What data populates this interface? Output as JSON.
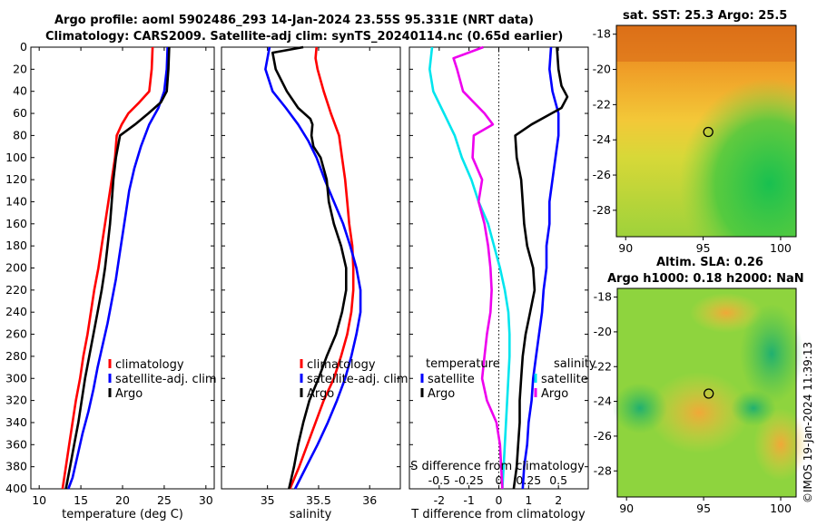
{
  "header": {
    "title_line1": "Argo profile: aoml 5902486_293 14-Jan-2024 23.55S 95.331E (NRT data)",
    "title_line2": "Climatology: CARS2009. Satellite-adj clim: synTS_20240114.nc (0.65d earlier)"
  },
  "colors": {
    "climatology": "#ff0000",
    "satellite": "#0000ff",
    "argo": "#000000",
    "salinity_sat": "#00e5ee",
    "salinity_argo": "#ee00ee"
  },
  "depth_axis": {
    "ylim": [
      0,
      400
    ],
    "ticks": [
      0,
      20,
      40,
      60,
      80,
      100,
      120,
      140,
      160,
      180,
      200,
      220,
      240,
      260,
      280,
      300,
      320,
      340,
      360,
      380,
      400
    ]
  },
  "legends": {
    "climatology": "climatology",
    "satellite_adj": "satellite-adj. clim",
    "argo": "Argo",
    "diff_temperature": "temperature",
    "diff_salinity": "salinity",
    "satellite": "satellite",
    "diff_argo": "Argo",
    "diff_argo_s": "Argo"
  },
  "chart_data": [
    {
      "type": "line",
      "name": "temperature",
      "xlabel": "temperature (deg C)",
      "xlim": [
        9,
        31
      ],
      "xticks": [
        10,
        15,
        20,
        25,
        30
      ],
      "series": [
        {
          "name": "climatology",
          "color": "#ff0000",
          "points": [
            [
              23.6,
              0
            ],
            [
              23.5,
              20
            ],
            [
              23.2,
              40
            ],
            [
              22.0,
              50
            ],
            [
              20.7,
              60
            ],
            [
              19.9,
              70
            ],
            [
              19.3,
              80
            ],
            [
              19.1,
              100
            ],
            [
              18.7,
              120
            ],
            [
              18.3,
              140
            ],
            [
              17.9,
              160
            ],
            [
              17.5,
              180
            ],
            [
              17.1,
              200
            ],
            [
              16.6,
              220
            ],
            [
              16.2,
              240
            ],
            [
              15.8,
              260
            ],
            [
              15.3,
              280
            ],
            [
              14.9,
              300
            ],
            [
              14.4,
              320
            ],
            [
              14.0,
              340
            ],
            [
              13.6,
              360
            ],
            [
              13.2,
              380
            ],
            [
              12.8,
              400
            ]
          ]
        },
        {
          "name": "satellite-adj. clim",
          "color": "#0000ff",
          "points": [
            [
              25.4,
              0
            ],
            [
              25.3,
              20
            ],
            [
              25.0,
              40
            ],
            [
              24.3,
              55
            ],
            [
              23.2,
              70
            ],
            [
              22.2,
              90
            ],
            [
              21.4,
              110
            ],
            [
              20.8,
              130
            ],
            [
              20.4,
              150
            ],
            [
              20.0,
              170
            ],
            [
              19.6,
              190
            ],
            [
              19.2,
              210
            ],
            [
              18.7,
              230
            ],
            [
              18.2,
              250
            ],
            [
              17.6,
              270
            ],
            [
              17.0,
              290
            ],
            [
              16.5,
              310
            ],
            [
              15.9,
              330
            ],
            [
              15.2,
              350
            ],
            [
              14.6,
              370
            ],
            [
              14.0,
              390
            ],
            [
              13.5,
              400
            ]
          ]
        },
        {
          "name": "Argo",
          "color": "#000000",
          "points": [
            [
              25.6,
              0
            ],
            [
              25.5,
              20
            ],
            [
              25.3,
              40
            ],
            [
              24.6,
              50
            ],
            [
              23.1,
              60
            ],
            [
              21.5,
              70
            ],
            [
              19.7,
              80
            ],
            [
              19.2,
              100
            ],
            [
              18.9,
              120
            ],
            [
              18.7,
              140
            ],
            [
              18.5,
              160
            ],
            [
              18.2,
              180
            ],
            [
              17.9,
              200
            ],
            [
              17.5,
              220
            ],
            [
              17.0,
              240
            ],
            [
              16.5,
              260
            ],
            [
              16.0,
              280
            ],
            [
              15.5,
              300
            ],
            [
              15.1,
              320
            ],
            [
              14.7,
              340
            ],
            [
              14.2,
              360
            ],
            [
              13.7,
              380
            ],
            [
              13.2,
              400
            ]
          ]
        }
      ]
    },
    {
      "type": "line",
      "name": "salinity",
      "xlabel": "salinity",
      "xlim": [
        34.55,
        36.3
      ],
      "xticks": [
        35,
        35.5,
        36
      ],
      "series": [
        {
          "name": "climatology",
          "color": "#ff0000",
          "points": [
            [
              35.48,
              0
            ],
            [
              35.47,
              10
            ],
            [
              35.49,
              20
            ],
            [
              35.55,
              40
            ],
            [
              35.62,
              60
            ],
            [
              35.7,
              80
            ],
            [
              35.73,
              100
            ],
            [
              35.76,
              120
            ],
            [
              35.78,
              140
            ],
            [
              35.8,
              160
            ],
            [
              35.83,
              180
            ],
            [
              35.84,
              200
            ],
            [
              35.84,
              220
            ],
            [
              35.82,
              240
            ],
            [
              35.78,
              260
            ],
            [
              35.72,
              280
            ],
            [
              35.65,
              300
            ],
            [
              35.55,
              320
            ],
            [
              35.47,
              340
            ],
            [
              35.39,
              360
            ],
            [
              35.31,
              380
            ],
            [
              35.22,
              400
            ]
          ]
        },
        {
          "name": "satellite-adj. clim",
          "color": "#0000ff",
          "points": [
            [
              35.02,
              0
            ],
            [
              34.98,
              20
            ],
            [
              35.05,
              40
            ],
            [
              35.18,
              55
            ],
            [
              35.3,
              70
            ],
            [
              35.4,
              85
            ],
            [
              35.48,
              100
            ],
            [
              35.56,
              120
            ],
            [
              35.65,
              140
            ],
            [
              35.74,
              160
            ],
            [
              35.81,
              180
            ],
            [
              35.87,
              200
            ],
            [
              35.91,
              220
            ],
            [
              35.91,
              240
            ],
            [
              35.87,
              260
            ],
            [
              35.82,
              280
            ],
            [
              35.76,
              300
            ],
            [
              35.68,
              320
            ],
            [
              35.59,
              340
            ],
            [
              35.49,
              360
            ],
            [
              35.38,
              380
            ],
            [
              35.27,
              400
            ]
          ]
        },
        {
          "name": "Argo",
          "color": "#000000",
          "points": [
            [
              35.35,
              0
            ],
            [
              35.05,
              5
            ],
            [
              35.08,
              20
            ],
            [
              35.19,
              40
            ],
            [
              35.3,
              55
            ],
            [
              35.42,
              65
            ],
            [
              35.44,
              70
            ],
            [
              35.43,
              80
            ],
            [
              35.45,
              90
            ],
            [
              35.52,
              100
            ],
            [
              35.58,
              120
            ],
            [
              35.6,
              140
            ],
            [
              35.65,
              160
            ],
            [
              35.72,
              180
            ],
            [
              35.77,
              200
            ],
            [
              35.77,
              220
            ],
            [
              35.73,
              240
            ],
            [
              35.67,
              260
            ],
            [
              35.58,
              280
            ],
            [
              35.5,
              300
            ],
            [
              35.41,
              320
            ],
            [
              35.35,
              340
            ],
            [
              35.3,
              360
            ],
            [
              35.26,
              380
            ],
            [
              35.21,
              400
            ]
          ]
        }
      ]
    },
    {
      "type": "line",
      "name": "difference from climatology",
      "xlabel": "T difference from climatology",
      "xlabel_top": "S difference from climatology",
      "xlim": [
        -3,
        3
      ],
      "xticks": [
        -2,
        -1,
        0,
        1,
        2
      ],
      "xticks_s": [
        -0.5,
        -0.25,
        0,
        0.25,
        0.5
      ],
      "xtick_labels_s": [
        "-0.5",
        "-0.25",
        "0",
        "0.25",
        "0.5"
      ],
      "s_scale": 4,
      "series": [
        {
          "name": "temperature satellite",
          "color": "#0000ff",
          "points": [
            [
              1.75,
              0
            ],
            [
              1.7,
              20
            ],
            [
              1.8,
              40
            ],
            [
              2.0,
              60
            ],
            [
              2.0,
              80
            ],
            [
              1.9,
              100
            ],
            [
              1.8,
              120
            ],
            [
              1.7,
              140
            ],
            [
              1.7,
              160
            ],
            [
              1.6,
              180
            ],
            [
              1.6,
              200
            ],
            [
              1.5,
              220
            ],
            [
              1.45,
              240
            ],
            [
              1.35,
              260
            ],
            [
              1.25,
              280
            ],
            [
              1.15,
              300
            ],
            [
              1.1,
              320
            ],
            [
              1.0,
              340
            ],
            [
              0.95,
              360
            ],
            [
              0.85,
              380
            ],
            [
              0.8,
              400
            ]
          ]
        },
        {
          "name": "temperature Argo",
          "color": "#000000",
          "points": [
            [
              1.95,
              0
            ],
            [
              2.0,
              20
            ],
            [
              2.1,
              35
            ],
            [
              2.3,
              45
            ],
            [
              2.1,
              55
            ],
            [
              1.1,
              70
            ],
            [
              0.55,
              80
            ],
            [
              0.6,
              100
            ],
            [
              0.75,
              120
            ],
            [
              0.8,
              140
            ],
            [
              0.85,
              160
            ],
            [
              0.95,
              180
            ],
            [
              1.15,
              200
            ],
            [
              1.2,
              220
            ],
            [
              1.05,
              240
            ],
            [
              0.9,
              260
            ],
            [
              0.8,
              280
            ],
            [
              0.75,
              300
            ],
            [
              0.7,
              320
            ],
            [
              0.7,
              340
            ],
            [
              0.65,
              360
            ],
            [
              0.6,
              380
            ],
            [
              0.5,
              400
            ]
          ]
        },
        {
          "name": "salinity satellite",
          "color": "#00e5ee",
          "points": [
            [
              -0.56,
              0
            ],
            [
              -0.58,
              20
            ],
            [
              -0.55,
              40
            ],
            [
              -0.46,
              60
            ],
            [
              -0.37,
              80
            ],
            [
              -0.31,
              100
            ],
            [
              -0.23,
              120
            ],
            [
              -0.17,
              140
            ],
            [
              -0.09,
              160
            ],
            [
              -0.04,
              180
            ],
            [
              0.01,
              200
            ],
            [
              0.05,
              220
            ],
            [
              0.08,
              240
            ],
            [
              0.09,
              260
            ],
            [
              0.09,
              280
            ],
            [
              0.08,
              300
            ],
            [
              0.07,
              320
            ],
            [
              0.06,
              340
            ],
            [
              0.05,
              360
            ],
            [
              0.04,
              380
            ],
            [
              0.03,
              400
            ]
          ]
        },
        {
          "name": "salinity Argo",
          "color": "#ee00ee",
          "points": [
            [
              -0.13,
              0
            ],
            [
              -0.38,
              10
            ],
            [
              -0.35,
              20
            ],
            [
              -0.3,
              40
            ],
            [
              -0.12,
              60
            ],
            [
              -0.05,
              70
            ],
            [
              -0.21,
              80
            ],
            [
              -0.22,
              100
            ],
            [
              -0.14,
              120
            ],
            [
              -0.17,
              140
            ],
            [
              -0.12,
              160
            ],
            [
              -0.09,
              180
            ],
            [
              -0.07,
              200
            ],
            [
              -0.06,
              220
            ],
            [
              -0.07,
              240
            ],
            [
              -0.1,
              260
            ],
            [
              -0.12,
              280
            ],
            [
              -0.14,
              300
            ],
            [
              -0.1,
              320
            ],
            [
              -0.02,
              340
            ],
            [
              0.01,
              360
            ],
            [
              0.02,
              380
            ],
            [
              0.03,
              400
            ]
          ]
        }
      ]
    },
    {
      "type": "heatmap",
      "name": "sat. SST",
      "title": "sat. SST: 25.3 Argo: 25.5",
      "lon_range": [
        89.4,
        101
      ],
      "lat_range": [
        -29.5,
        -17.5
      ],
      "xticks": [
        90,
        95,
        100
      ],
      "yticks": [
        -18,
        -20,
        -22,
        -24,
        -26,
        -28
      ],
      "marker": {
        "lon": 95.331,
        "lat": -23.55
      }
    },
    {
      "type": "heatmap",
      "name": "Altim. SLA",
      "title_line1": "Altim. SLA: 0.26",
      "title_line2": "Argo h1000: 0.18 h2000: NaN",
      "lon_range": [
        89.4,
        101
      ],
      "lat_range": [
        -29.5,
        -17.5
      ],
      "xticks": [
        90,
        95,
        100
      ],
      "yticks": [
        -18,
        -20,
        -22,
        -24,
        -26,
        -28
      ],
      "marker": {
        "lon": 95.331,
        "lat": -23.55
      }
    }
  ],
  "stamp": "©IMOS 19-Jan-2024 11:39:13"
}
